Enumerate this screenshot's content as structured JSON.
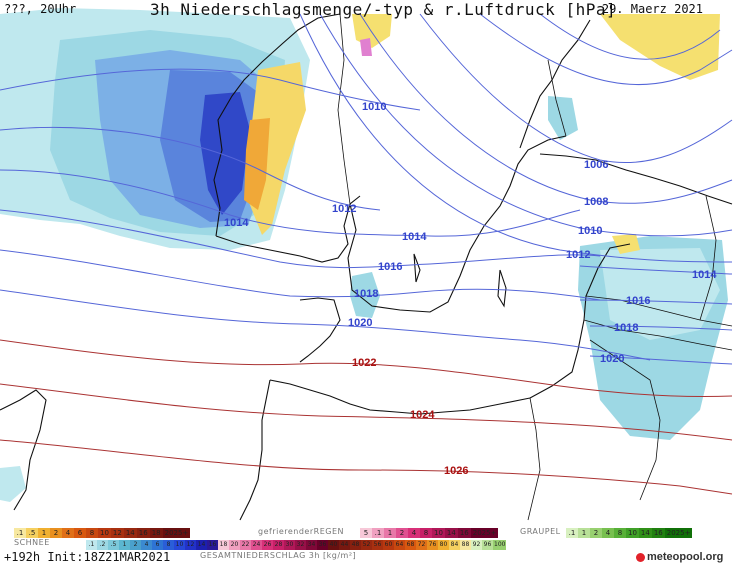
{
  "header": {
    "left": "???, 20Uhr",
    "title": "3h Niederschlagsmenge/-typ & r.Luftdruck [hPa]",
    "date": "29. Maerz 2021"
  },
  "footer": {
    "run": "+192h  Init:18Z21MAR2021",
    "logo": "meteopool.org"
  },
  "legend": {
    "snow_label": "SCHNEE",
    "freezing_rain_label": "gefrierenderREGEN",
    "graupel_label": "GRAUPEL",
    "total_label": "GESAMTNIEDERSCHLAG 3h [kg/m²]",
    "rain_scale": [
      ".1",
      ".5",
      "1",
      "2",
      "4",
      "6",
      "8",
      "10",
      "12",
      "14",
      "16",
      "18",
      "2025+"
    ],
    "freezing_scale": [
      "5",
      ".1",
      "1",
      "2",
      "4",
      "8",
      "10",
      "14",
      "16",
      "2025+"
    ],
    "graupel_scale": [
      ".1",
      "1",
      "2",
      "4",
      "8",
      "10",
      "14",
      "16",
      "2025+"
    ],
    "snow_scale": [
      ".1",
      ".2",
      ".5",
      "1",
      "2",
      "4",
      "6",
      "8",
      "10",
      "12",
      "14",
      "16",
      "18",
      "20",
      "22",
      "24",
      "26",
      "28",
      "30",
      "32",
      "34",
      "36",
      "40",
      "44",
      "48",
      "52",
      "56",
      "60",
      "64",
      "68",
      "72",
      "76",
      "80",
      "84",
      "88",
      "92",
      "96",
      "100"
    ],
    "colors": {
      "rain": [
        "#f7e8a0",
        "#f5d060",
        "#f0b030",
        "#e89020",
        "#e07018",
        "#d85810",
        "#c84810",
        "#b83810",
        "#a83010",
        "#982810",
        "#882010",
        "#781810",
        "#681010"
      ],
      "freezing": [
        "#f7c8d8",
        "#f0a0c0",
        "#e878a8",
        "#e05090",
        "#d83078",
        "#c82068",
        "#b01858",
        "#981048",
        "#800838",
        "#680028"
      ],
      "graupel": [
        "#d8f0c0",
        "#b8e098",
        "#98d070",
        "#78c050",
        "#58b038",
        "#40a028",
        "#309018",
        "#208010",
        "#107008"
      ],
      "snow_blue": [
        "#bfe8ee",
        "#9dd8e4",
        "#7cc8da",
        "#5bb6d0",
        "#4aa0cc",
        "#3b8ad0",
        "#2e74d4",
        "#2a5ed8",
        "#2648d8",
        "#2232c8",
        "#1c20b0",
        "#2a1898"
      ]
    }
  },
  "isobars": [
    "1010",
    "1012",
    "1014",
    "1014",
    "1016",
    "1018",
    "1020",
    "1022",
    "1024",
    "1026",
    "1006",
    "1008",
    "1010",
    "1012",
    "1014",
    "1016",
    "1018",
    "1020"
  ],
  "iso_colors": {
    "low": "#3344cc",
    "high": "#aa1111"
  }
}
